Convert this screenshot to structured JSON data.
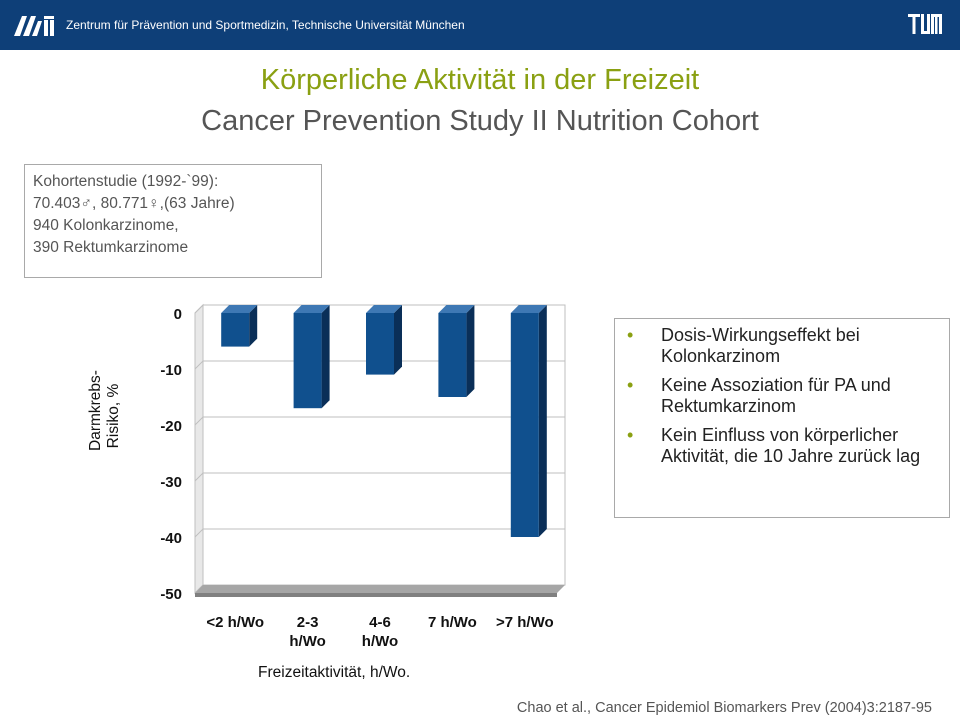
{
  "header": {
    "institution": "Zentrum für Prävention und Sportmedizin, Technische Universität München",
    "logo_left": "ARI",
    "logo_right": "TUM"
  },
  "title": {
    "line1": "Körperliche Aktivität in der Freizeit",
    "line2": "Cancer Prevention Study II Nutrition Cohort"
  },
  "info_box": {
    "lines": [
      "Kohortenstudie (1992-`99):",
      "70.403♂, 80.771♀,(63 Jahre)",
      "940 Kolonkarzinome,",
      "390 Rektumkarzinome"
    ]
  },
  "bullets": [
    "Dosis-Wirkungseffekt bei Kolonkarzinom",
    "Keine Assoziation für PA und Rektumkarzinom",
    "Kein Einfluss von körperlicher Aktivität, die 10 Jahre zurück lag"
  ],
  "citation": "Chao et al., Cancer Epidemiol Biomarkers Prev (2004)3:2187-95",
  "colors": {
    "header_bg": "#0e3f78",
    "title_green": "#8aa012",
    "bar_front": "#10508e",
    "bar_side": "#0a2f58",
    "bar_top": "#3e78b4"
  },
  "chart_data": {
    "type": "bar",
    "categories": [
      "<2 h/Wo",
      "2-3 h/Wo",
      "4-6 h/Wo",
      "7 h/Wo",
      ">7 h/Wo"
    ],
    "category_lines": [
      [
        "<2 h/Wo"
      ],
      [
        "2-3",
        "h/Wo"
      ],
      [
        "4-6",
        "h/Wo"
      ],
      [
        "7 h/Wo"
      ],
      [
        ">7 h/Wo"
      ]
    ],
    "values": [
      -6,
      -17,
      -11,
      -15,
      -40
    ],
    "ylabel": "Darmkrebs-Risiko, %",
    "ylabel_lines": [
      "Darmkrebs-",
      "Risiko, %"
    ],
    "xlabel": "Freizeitaktivität, h/Wo.",
    "ylim": [
      -50,
      0
    ],
    "yticks": [
      0,
      -10,
      -20,
      -30,
      -40,
      -50
    ],
    "grid": true,
    "style": "3d"
  }
}
